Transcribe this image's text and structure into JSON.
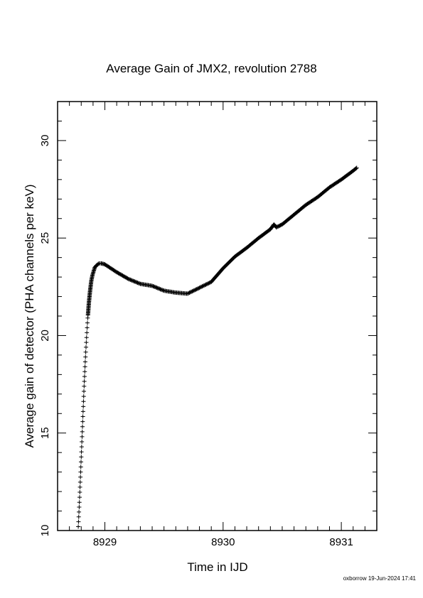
{
  "chart_data": {
    "type": "scatter",
    "title": "Average Gain of JMX2, revolution 2788",
    "xlabel": "Time in IJD",
    "ylabel": "Average gain of detector (PHA channels per keV)",
    "xlim": [
      8928.6,
      8931.3
    ],
    "ylim": [
      10,
      32
    ],
    "xticks": [
      8929,
      8930,
      8931
    ],
    "yticks": [
      10,
      15,
      20,
      25,
      30
    ],
    "grid": false,
    "marker": "+",
    "series": [
      {
        "color": "#000000",
        "x": [
          8928.775,
          8928.785,
          8928.795,
          8928.805,
          8928.815,
          8928.825,
          8928.835,
          8928.845,
          8928.855,
          8928.865,
          8928.875,
          8928.885,
          8928.895,
          8928.905,
          8928.915,
          8928.93,
          8928.95,
          8928.97,
          8929.0,
          8929.05,
          8929.1,
          8929.2,
          8929.3,
          8929.4,
          8929.5,
          8929.6,
          8929.7,
          8929.8,
          8929.9,
          8930.0,
          8930.1,
          8930.2,
          8930.3,
          8930.4,
          8930.43,
          8930.45,
          8930.5,
          8930.6,
          8930.7,
          8930.8,
          8930.9,
          8931.0,
          8931.1,
          8931.13
        ],
        "y": [
          10.2,
          11.5,
          13.0,
          14.5,
          16.0,
          17.5,
          18.8,
          19.9,
          20.9,
          21.7,
          22.3,
          22.8,
          23.1,
          23.3,
          23.5,
          23.6,
          23.7,
          23.7,
          23.65,
          23.45,
          23.25,
          22.9,
          22.65,
          22.55,
          22.3,
          22.2,
          22.15,
          22.45,
          22.75,
          23.45,
          24.05,
          24.5,
          25.0,
          25.45,
          25.7,
          25.55,
          25.7,
          26.2,
          26.7,
          27.1,
          27.6,
          28.0,
          28.45,
          28.6
        ]
      }
    ]
  },
  "footer": "oxborrow 19-Jun-2024 17:41"
}
